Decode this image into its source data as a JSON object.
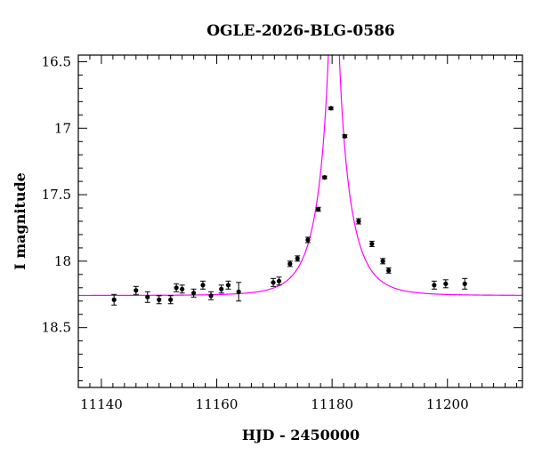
{
  "chart_data": {
    "type": "scatter",
    "title": "OGLE-2026-BLG-0586",
    "xlabel": "HJD - 2450000",
    "ylabel": "I magnitude",
    "xlim": [
      11136,
      11213
    ],
    "ylim": [
      18.95,
      16.45
    ],
    "y_inverted": true,
    "x_ticks": [
      11140,
      11160,
      11180,
      11200
    ],
    "x_tick_labels": [
      "11140",
      "11160",
      "11180",
      "11200"
    ],
    "y_ticks": [
      16.5,
      17,
      17.5,
      18,
      18.5
    ],
    "y_tick_labels": [
      "16.5",
      "17",
      "17.5",
      "18",
      "18.5"
    ],
    "grid": false,
    "model_color": "#ff00ff",
    "point_color": "#000000",
    "series": [
      {
        "type": "errorbar",
        "x": [
          11142.2,
          11146.0,
          11148.0,
          11150.0,
          11152.0,
          11153.0,
          11154.0,
          11156.0,
          11157.6,
          11159.0,
          11160.8,
          11162.0,
          11163.8,
          11169.8,
          11170.8,
          11172.7,
          11174.0,
          11175.8,
          11177.6,
          11178.7,
          11179.8,
          11182.2,
          11184.6,
          11186.9,
          11188.8,
          11189.8,
          11197.7,
          11199.7,
          11203.0
        ],
        "y": [
          18.29,
          18.22,
          18.27,
          18.29,
          18.29,
          18.2,
          18.21,
          18.24,
          18.18,
          18.26,
          18.21,
          18.18,
          18.23,
          18.16,
          18.15,
          18.02,
          17.98,
          17.84,
          17.61,
          17.37,
          16.85,
          17.06,
          17.7,
          17.87,
          18.0,
          18.07,
          18.18,
          18.17,
          18.17
        ],
        "yerr": [
          0.04,
          0.03,
          0.04,
          0.03,
          0.03,
          0.03,
          0.03,
          0.03,
          0.03,
          0.03,
          0.03,
          0.03,
          0.07,
          0.03,
          0.03,
          0.02,
          0.02,
          0.02,
          0.015,
          0.01,
          0.01,
          0.01,
          0.02,
          0.02,
          0.02,
          0.02,
          0.03,
          0.03,
          0.04
        ]
      },
      {
        "type": "model",
        "t0": 11180.3,
        "baseline": 18.258,
        "tE": 5.0,
        "u0": 0.02
      }
    ]
  }
}
